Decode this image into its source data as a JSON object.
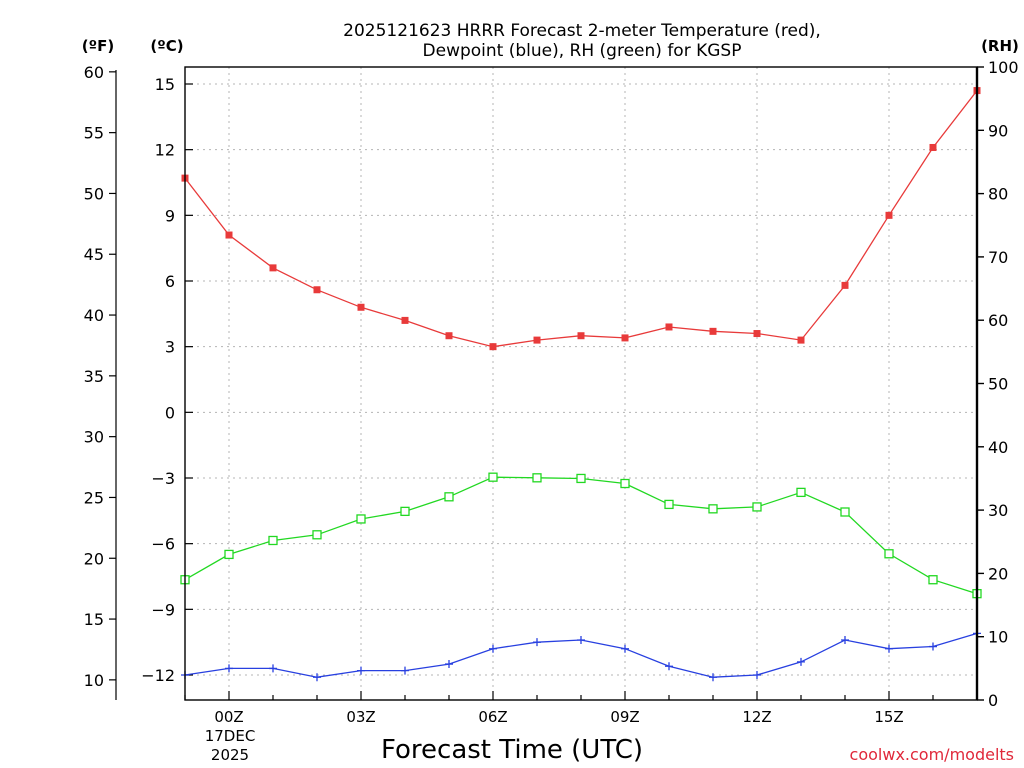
{
  "chart_data": {
    "type": "line",
    "title_lines": [
      "2025121623 HRRR Forecast 2-meter Temperature (red),",
      "Dewpoint (blue), RH (green) for KGSP"
    ],
    "xlabel": "Forecast Time (UTC)",
    "x_tick_labels": [
      "00Z",
      "03Z",
      "06Z",
      "09Z",
      "12Z",
      "15Z"
    ],
    "x_date_label": [
      "17DEC",
      "2025"
    ],
    "x_hours": [
      -1,
      0,
      1,
      2,
      3,
      4,
      5,
      6,
      7,
      8,
      9,
      10,
      11,
      12,
      13,
      14,
      15,
      16,
      17
    ],
    "x_range": [
      -1,
      17
    ],
    "left_axis_c": {
      "unit_label": "(ºC)",
      "range": [
        -13,
        15.5
      ],
      "ticks": [
        15,
        12,
        9,
        6,
        3,
        0,
        -3,
        -6,
        -9,
        -12
      ],
      "tick_labels": [
        "15",
        "12",
        "9",
        "6",
        "3",
        "0",
        "−3",
        "−6",
        "−9",
        "−12"
      ]
    },
    "left_axis_f": {
      "unit_label": "(ºF)",
      "ticks": [
        60,
        55,
        50,
        45,
        40,
        35,
        30,
        25,
        20,
        15,
        10
      ],
      "tick_labels": [
        "60",
        "55",
        "50",
        "45",
        "40",
        "35",
        "30",
        "25",
        "20",
        "15",
        "10"
      ]
    },
    "right_axis_rh": {
      "unit_label": "(RH)",
      "range": [
        0,
        100
      ],
      "ticks": [
        100,
        90,
        80,
        70,
        60,
        50,
        40,
        30,
        20,
        10,
        0
      ],
      "tick_labels": [
        "100",
        "90",
        "80",
        "70",
        "60",
        "50",
        "40",
        "30",
        "20",
        "10",
        "0"
      ]
    },
    "series": [
      {
        "name": "2-meter Temperature",
        "color": "#e83a3a",
        "marker": "filled-square",
        "axis": "C",
        "values": [
          10.7,
          8.1,
          6.6,
          5.6,
          4.8,
          4.2,
          3.5,
          3.0,
          3.3,
          3.5,
          3.4,
          3.9,
          3.7,
          3.6,
          3.3,
          5.8,
          9.0,
          12.1,
          14.7
        ]
      },
      {
        "name": "Dewpoint",
        "color": "#2840e0",
        "marker": "plus",
        "axis": "C",
        "values": [
          -12.0,
          -11.7,
          -11.7,
          -12.1,
          -11.8,
          -11.8,
          -11.5,
          -10.8,
          -10.5,
          -10.4,
          -10.8,
          -11.6,
          -12.1,
          -12.0,
          -11.4,
          -10.4,
          -10.8,
          -10.7,
          -10.1
        ]
      },
      {
        "name": "RH",
        "color": "#22d822",
        "marker": "open-square",
        "axis": "RH",
        "values": [
          19,
          23,
          25.2,
          26.1,
          28.6,
          29.8,
          32.1,
          35.2,
          35.1,
          35.0,
          34.2,
          30.9,
          30.2,
          30.5,
          32.8,
          29.7,
          23.1,
          19.0,
          16.8
        ]
      }
    ]
  },
  "credit": "coolwx.com/modelts"
}
